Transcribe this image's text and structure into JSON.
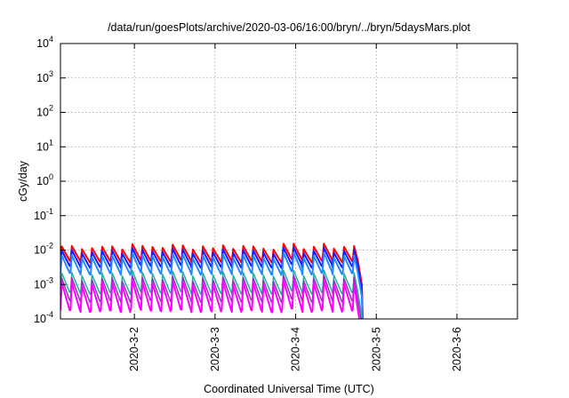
{
  "chart_data": {
    "type": "line",
    "title": "/data/run/goesPlots/archive/2020-03-06/16:00/bryn/../bryn/5daysMars.plot",
    "xlabel": "Coordinated Universal Time (UTC)",
    "ylabel": "cGy/day",
    "y_scale": "log",
    "ylim": [
      0.0001,
      10000
    ],
    "xlim": [
      "2020-03-01 02:00",
      "2020-03-06 18:00"
    ],
    "x_ticks": [
      "2020-3-2",
      "2020-3-3",
      "2020-3-4",
      "2020-3-5",
      "2020-3-6"
    ],
    "y_ticks": [
      {
        "base": "10",
        "exp": "-4"
      },
      {
        "base": "10",
        "exp": "-3"
      },
      {
        "base": "10",
        "exp": "-2"
      },
      {
        "base": "10",
        "exp": "-1"
      },
      {
        "base": "10",
        "exp": "0"
      },
      {
        "base": "10",
        "exp": "1"
      },
      {
        "base": "10",
        "exp": "2"
      },
      {
        "base": "10",
        "exp": "3"
      },
      {
        "base": "10",
        "exp": "4"
      }
    ],
    "grid": true,
    "x_period_hours": 3,
    "data_end": "2020-03-04 18:30",
    "series": [
      {
        "color": "#ff0000",
        "peak": 0.0125,
        "trough": 0.005,
        "width": 2
      },
      {
        "color": "#1a1aff",
        "peak": 0.0095,
        "trough": 0.0035,
        "width": 2
      },
      {
        "color": "#2288ff",
        "peak": 0.0068,
        "trough": 0.0022,
        "width": 2
      },
      {
        "color": "#20b0a0",
        "peak": 0.0021,
        "trough": 0.0006,
        "width": 1.5
      },
      {
        "color": "#9030c0",
        "peak": 0.0015,
        "trough": 0.00035,
        "width": 1.5
      },
      {
        "color": "#ff00ff",
        "peak": 0.0011,
        "trough": 0.00018,
        "width": 2
      }
    ]
  }
}
